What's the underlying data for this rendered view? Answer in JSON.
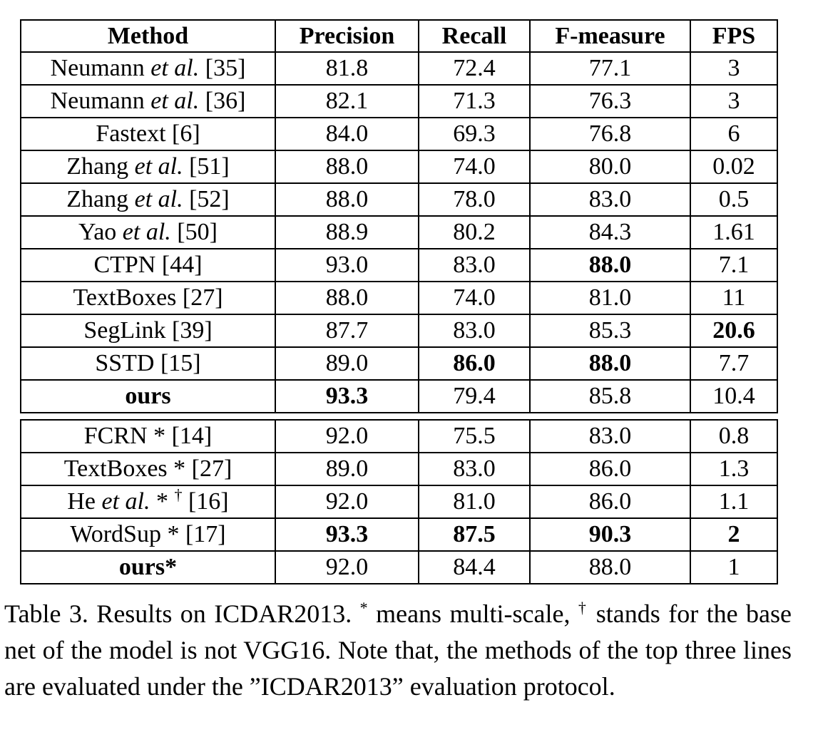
{
  "table": {
    "headers": [
      "Method",
      "Precision",
      "Recall",
      "F-measure",
      "FPS"
    ],
    "groups": [
      [
        {
          "method": "Neumann",
          "etal": "et al.",
          "ref": "[35]",
          "precision": "81.8",
          "recall": "72.4",
          "fmeasure": "77.1",
          "fps": "3"
        },
        {
          "method": "Neumann",
          "etal": "et al.",
          "ref": "[36]",
          "precision": "82.1",
          "recall": "71.3",
          "fmeasure": "76.3",
          "fps": "3"
        },
        {
          "method": "Fastext",
          "etal": "",
          "ref": "[6]",
          "precision": "84.0",
          "recall": "69.3",
          "fmeasure": "76.8",
          "fps": "6"
        },
        {
          "method": "Zhang",
          "etal": "et al.",
          "ref": "[51]",
          "precision": "88.0",
          "recall": "74.0",
          "fmeasure": "80.0",
          "fps": "0.02"
        },
        {
          "method": "Zhang",
          "etal": "et al.",
          "ref": "[52]",
          "precision": "88.0",
          "recall": "78.0",
          "fmeasure": "83.0",
          "fps": "0.5"
        },
        {
          "method": "Yao",
          "etal": "et al.",
          "ref": "[50]",
          "precision": "88.9",
          "recall": "80.2",
          "fmeasure": "84.3",
          "fps": "1.61"
        },
        {
          "method": "CTPN",
          "etal": "",
          "ref": "[44]",
          "precision": "93.0",
          "recall": "83.0",
          "fmeasure": "88.0",
          "fps": "7.1",
          "bold": [
            "fmeasure"
          ]
        },
        {
          "method": "TextBoxes",
          "etal": "",
          "ref": "[27]",
          "precision": "88.0",
          "recall": "74.0",
          "fmeasure": "81.0",
          "fps": "11"
        },
        {
          "method": "SegLink",
          "etal": "",
          "ref": "[39]",
          "precision": "87.7",
          "recall": "83.0",
          "fmeasure": "85.3",
          "fps": "20.6",
          "bold": [
            "fps"
          ]
        },
        {
          "method": "SSTD",
          "etal": "",
          "ref": "[15]",
          "precision": "89.0",
          "recall": "86.0",
          "fmeasure": "88.0",
          "fps": "7.7",
          "bold": [
            "recall",
            "fmeasure"
          ]
        },
        {
          "method": "ours",
          "etal": "",
          "ref": "",
          "precision": "93.3",
          "recall": "79.4",
          "fmeasure": "85.8",
          "fps": "10.4",
          "bold": [
            "method",
            "precision"
          ]
        }
      ],
      [
        {
          "method": "FCRN",
          "etal": "",
          "mark": " *",
          "ref": "[14]",
          "precision": "92.0",
          "recall": "75.5",
          "fmeasure": "83.0",
          "fps": "0.8"
        },
        {
          "method": "TextBoxes",
          "etal": "",
          "mark": " *",
          "ref": "[27]",
          "precision": "89.0",
          "recall": "83.0",
          "fmeasure": "86.0",
          "fps": "1.3"
        },
        {
          "method": "He",
          "etal": "et al.",
          "mark": " *",
          "dagger": "†",
          "ref": "[16]",
          "precision": "92.0",
          "recall": "81.0",
          "fmeasure": "86.0",
          "fps": "1.1"
        },
        {
          "method": "WordSup",
          "etal": "",
          "mark": " *",
          "ref": "[17]",
          "precision": "93.3",
          "recall": "87.5",
          "fmeasure": "90.3",
          "fps": "2",
          "bold": [
            "precision",
            "recall",
            "fmeasure",
            "fps"
          ]
        },
        {
          "method": "ours",
          "etal": "",
          "mark": "*",
          "ref": "",
          "precision": "92.0",
          "recall": "84.4",
          "fmeasure": "88.0",
          "fps": "1",
          "bold": [
            "method"
          ]
        }
      ]
    ]
  },
  "caption": {
    "label": "Table 3.",
    "part1": " Results on ICDAR2013. ",
    "star": "*",
    "part2": " means multi-scale, ",
    "dagger": "†",
    "part3": " stands for the base net of the model is not VGG16. Note that, the methods of the top three lines are evaluated under the ”ICDAR2013” evaluation protocol."
  }
}
